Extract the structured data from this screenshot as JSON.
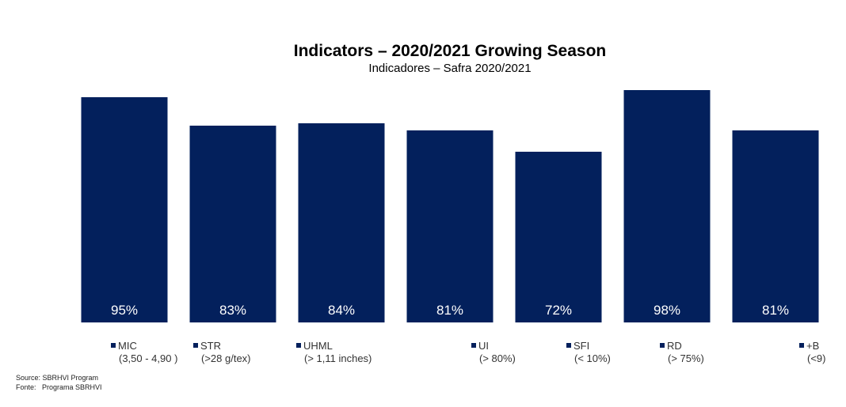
{
  "chart_data": {
    "type": "bar",
    "title": "Indicators – 2020/2021 Growing Season",
    "subtitle": "Indicadores – Safra 2020/2021",
    "categories": [
      "MIC",
      "STR",
      "UHML",
      "UI",
      "SFI",
      "RD",
      "+B"
    ],
    "category_ranges": [
      "(3,50 - 4,90 )",
      "(>28 g/tex)",
      "(> 1,11 inches)",
      "(> 80%)",
      "(< 10%)",
      "(> 75%)",
      "(<9)"
    ],
    "values": [
      95,
      83,
      84,
      81,
      72,
      98,
      81
    ],
    "value_labels": [
      "95%",
      "83%",
      "84%",
      "81%",
      "72%",
      "98%",
      "81%"
    ],
    "ylim": [
      0,
      100
    ],
    "grid": false,
    "legend_position": "bottom",
    "bar_color": "#03205c"
  },
  "source": {
    "line1": "Source: SBRHVI Program",
    "line2": "Fonte:   Programa SBRHVI"
  }
}
